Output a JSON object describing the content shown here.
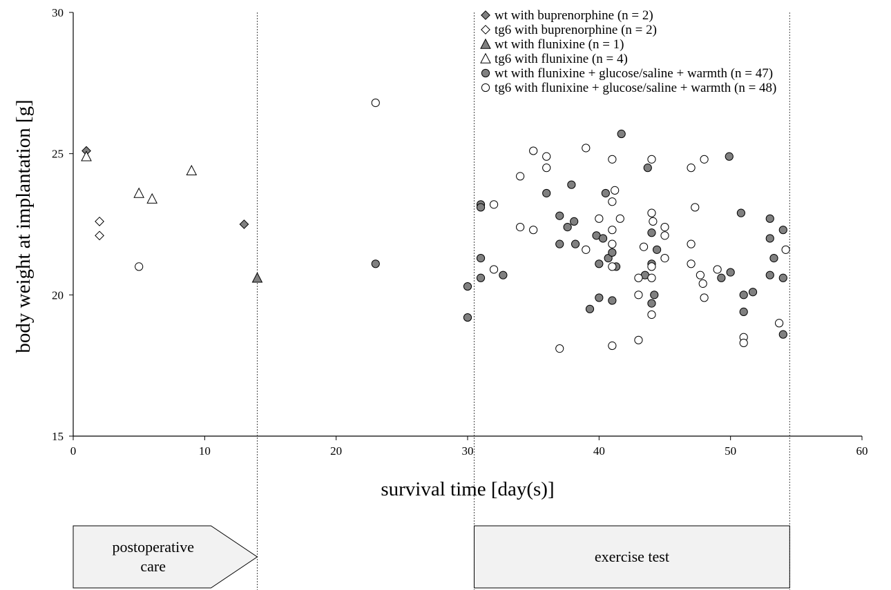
{
  "chart_data": {
    "type": "scatter",
    "title": "",
    "xlabel": "survival time [day(s)]",
    "ylabel": "body weight at implantation [g]",
    "xlim": [
      0,
      60
    ],
    "ylim": [
      15,
      30
    ],
    "xticks": [
      0,
      10,
      20,
      30,
      40,
      50,
      60
    ],
    "yticks": [
      15,
      20,
      25,
      30
    ],
    "xtick_labels": [
      "0",
      "10",
      "20",
      "30",
      "40",
      "50",
      "60"
    ],
    "ytick_labels": [
      "15",
      "20",
      "25",
      "30"
    ],
    "grid": false,
    "legend_position": "top-right",
    "vertical_reference_lines": [
      14,
      30.5,
      54.5
    ],
    "phase_boxes": [
      {
        "label_lines": [
          "postoperative",
          "care"
        ],
        "x_start": 0,
        "x_end": 14,
        "shape": "arrow"
      },
      {
        "label_lines": [
          "exercise test"
        ],
        "x_start": 30.5,
        "x_end": 54.5,
        "shape": "rect"
      }
    ],
    "series": [
      {
        "name": "wt  with buprenorphine (n = 2)",
        "marker": "diamond",
        "fill": "#808080",
        "points": [
          [
            1,
            25.1
          ],
          [
            13,
            22.5
          ]
        ]
      },
      {
        "name": "tg6 with buprenorphine (n = 2)",
        "marker": "diamond",
        "fill": "#ffffff",
        "points": [
          [
            2,
            22.6
          ],
          [
            2,
            22.1
          ]
        ]
      },
      {
        "name": "wt  with flunixine (n = 1)",
        "marker": "triangle",
        "fill": "#808080",
        "points": [
          [
            14,
            20.6
          ]
        ]
      },
      {
        "name": "tg6 with flunixine (n = 4)",
        "marker": "triangle",
        "fill": "#ffffff",
        "points": [
          [
            1,
            24.9
          ],
          [
            5,
            23.6
          ],
          [
            6,
            23.4
          ],
          [
            9,
            24.4
          ]
        ]
      },
      {
        "name": "wt  with flunixine + glucose/saline + warmth (n = 47)",
        "marker": "circle",
        "fill": "#808080",
        "points": [
          [
            23,
            21.1
          ],
          [
            30,
            20.3
          ],
          [
            30,
            19.2
          ],
          [
            31,
            23.2
          ],
          [
            31,
            23.1
          ],
          [
            31,
            21.3
          ],
          [
            31,
            20.6
          ],
          [
            32.7,
            20.7
          ],
          [
            36,
            23.6
          ],
          [
            37,
            22.8
          ],
          [
            37,
            21.8
          ],
          [
            37.6,
            22.4
          ],
          [
            37.9,
            23.9
          ],
          [
            38.1,
            22.6
          ],
          [
            38.2,
            21.8
          ],
          [
            39.3,
            19.5
          ],
          [
            39.8,
            22.1
          ],
          [
            40,
            21.1
          ],
          [
            40,
            19.9
          ],
          [
            40.3,
            22.0
          ],
          [
            40.5,
            23.6
          ],
          [
            40.7,
            21.3
          ],
          [
            41,
            21.5
          ],
          [
            41,
            19.8
          ],
          [
            41.3,
            21.0
          ],
          [
            41.7,
            25.7
          ],
          [
            43.5,
            20.7
          ],
          [
            43.7,
            24.5
          ],
          [
            44,
            22.2
          ],
          [
            44,
            21.1
          ],
          [
            44,
            19.7
          ],
          [
            44.2,
            20.0
          ],
          [
            44.4,
            21.6
          ],
          [
            49.9,
            24.9
          ],
          [
            49.3,
            20.6
          ],
          [
            50,
            20.8
          ],
          [
            50.8,
            22.9
          ],
          [
            51,
            20.0
          ],
          [
            51,
            19.4
          ],
          [
            51.7,
            20.1
          ],
          [
            53,
            22.7
          ],
          [
            53,
            22.0
          ],
          [
            53,
            20.7
          ],
          [
            53.3,
            21.3
          ],
          [
            54,
            22.3
          ],
          [
            54,
            20.6
          ],
          [
            54,
            18.6
          ]
        ]
      },
      {
        "name": "tg6 with flunixine + glucose/saline + warmth (n = 48)",
        "marker": "circle",
        "fill": "#ffffff",
        "points": [
          [
            5,
            21.0
          ],
          [
            23,
            26.8
          ],
          [
            32,
            23.2
          ],
          [
            32,
            20.9
          ],
          [
            34,
            24.2
          ],
          [
            34,
            22.4
          ],
          [
            35,
            25.1
          ],
          [
            35,
            22.3
          ],
          [
            36,
            24.9
          ],
          [
            36,
            24.5
          ],
          [
            37,
            18.1
          ],
          [
            39,
            25.2
          ],
          [
            39,
            21.6
          ],
          [
            40,
            22.7
          ],
          [
            41,
            24.8
          ],
          [
            41,
            23.3
          ],
          [
            41,
            22.3
          ],
          [
            41,
            21.8
          ],
          [
            41,
            21.0
          ],
          [
            41,
            18.2
          ],
          [
            41.2,
            23.7
          ],
          [
            41.6,
            22.7
          ],
          [
            43,
            20.6
          ],
          [
            43,
            20.0
          ],
          [
            43,
            18.4
          ],
          [
            43.4,
            21.7
          ],
          [
            44,
            24.8
          ],
          [
            44,
            22.9
          ],
          [
            44.1,
            22.6
          ],
          [
            44,
            21.0
          ],
          [
            44,
            20.6
          ],
          [
            44,
            19.3
          ],
          [
            45,
            22.4
          ],
          [
            45,
            22.1
          ],
          [
            45,
            21.3
          ],
          [
            47,
            24.5
          ],
          [
            47,
            21.8
          ],
          [
            47,
            21.1
          ],
          [
            47.3,
            23.1
          ],
          [
            47.7,
            20.7
          ],
          [
            47.9,
            20.4
          ],
          [
            48,
            24.8
          ],
          [
            48,
            19.9
          ],
          [
            49,
            20.9
          ],
          [
            51,
            18.5
          ],
          [
            51,
            18.3
          ],
          [
            53.7,
            19.0
          ],
          [
            54.2,
            21.6
          ]
        ]
      }
    ]
  }
}
